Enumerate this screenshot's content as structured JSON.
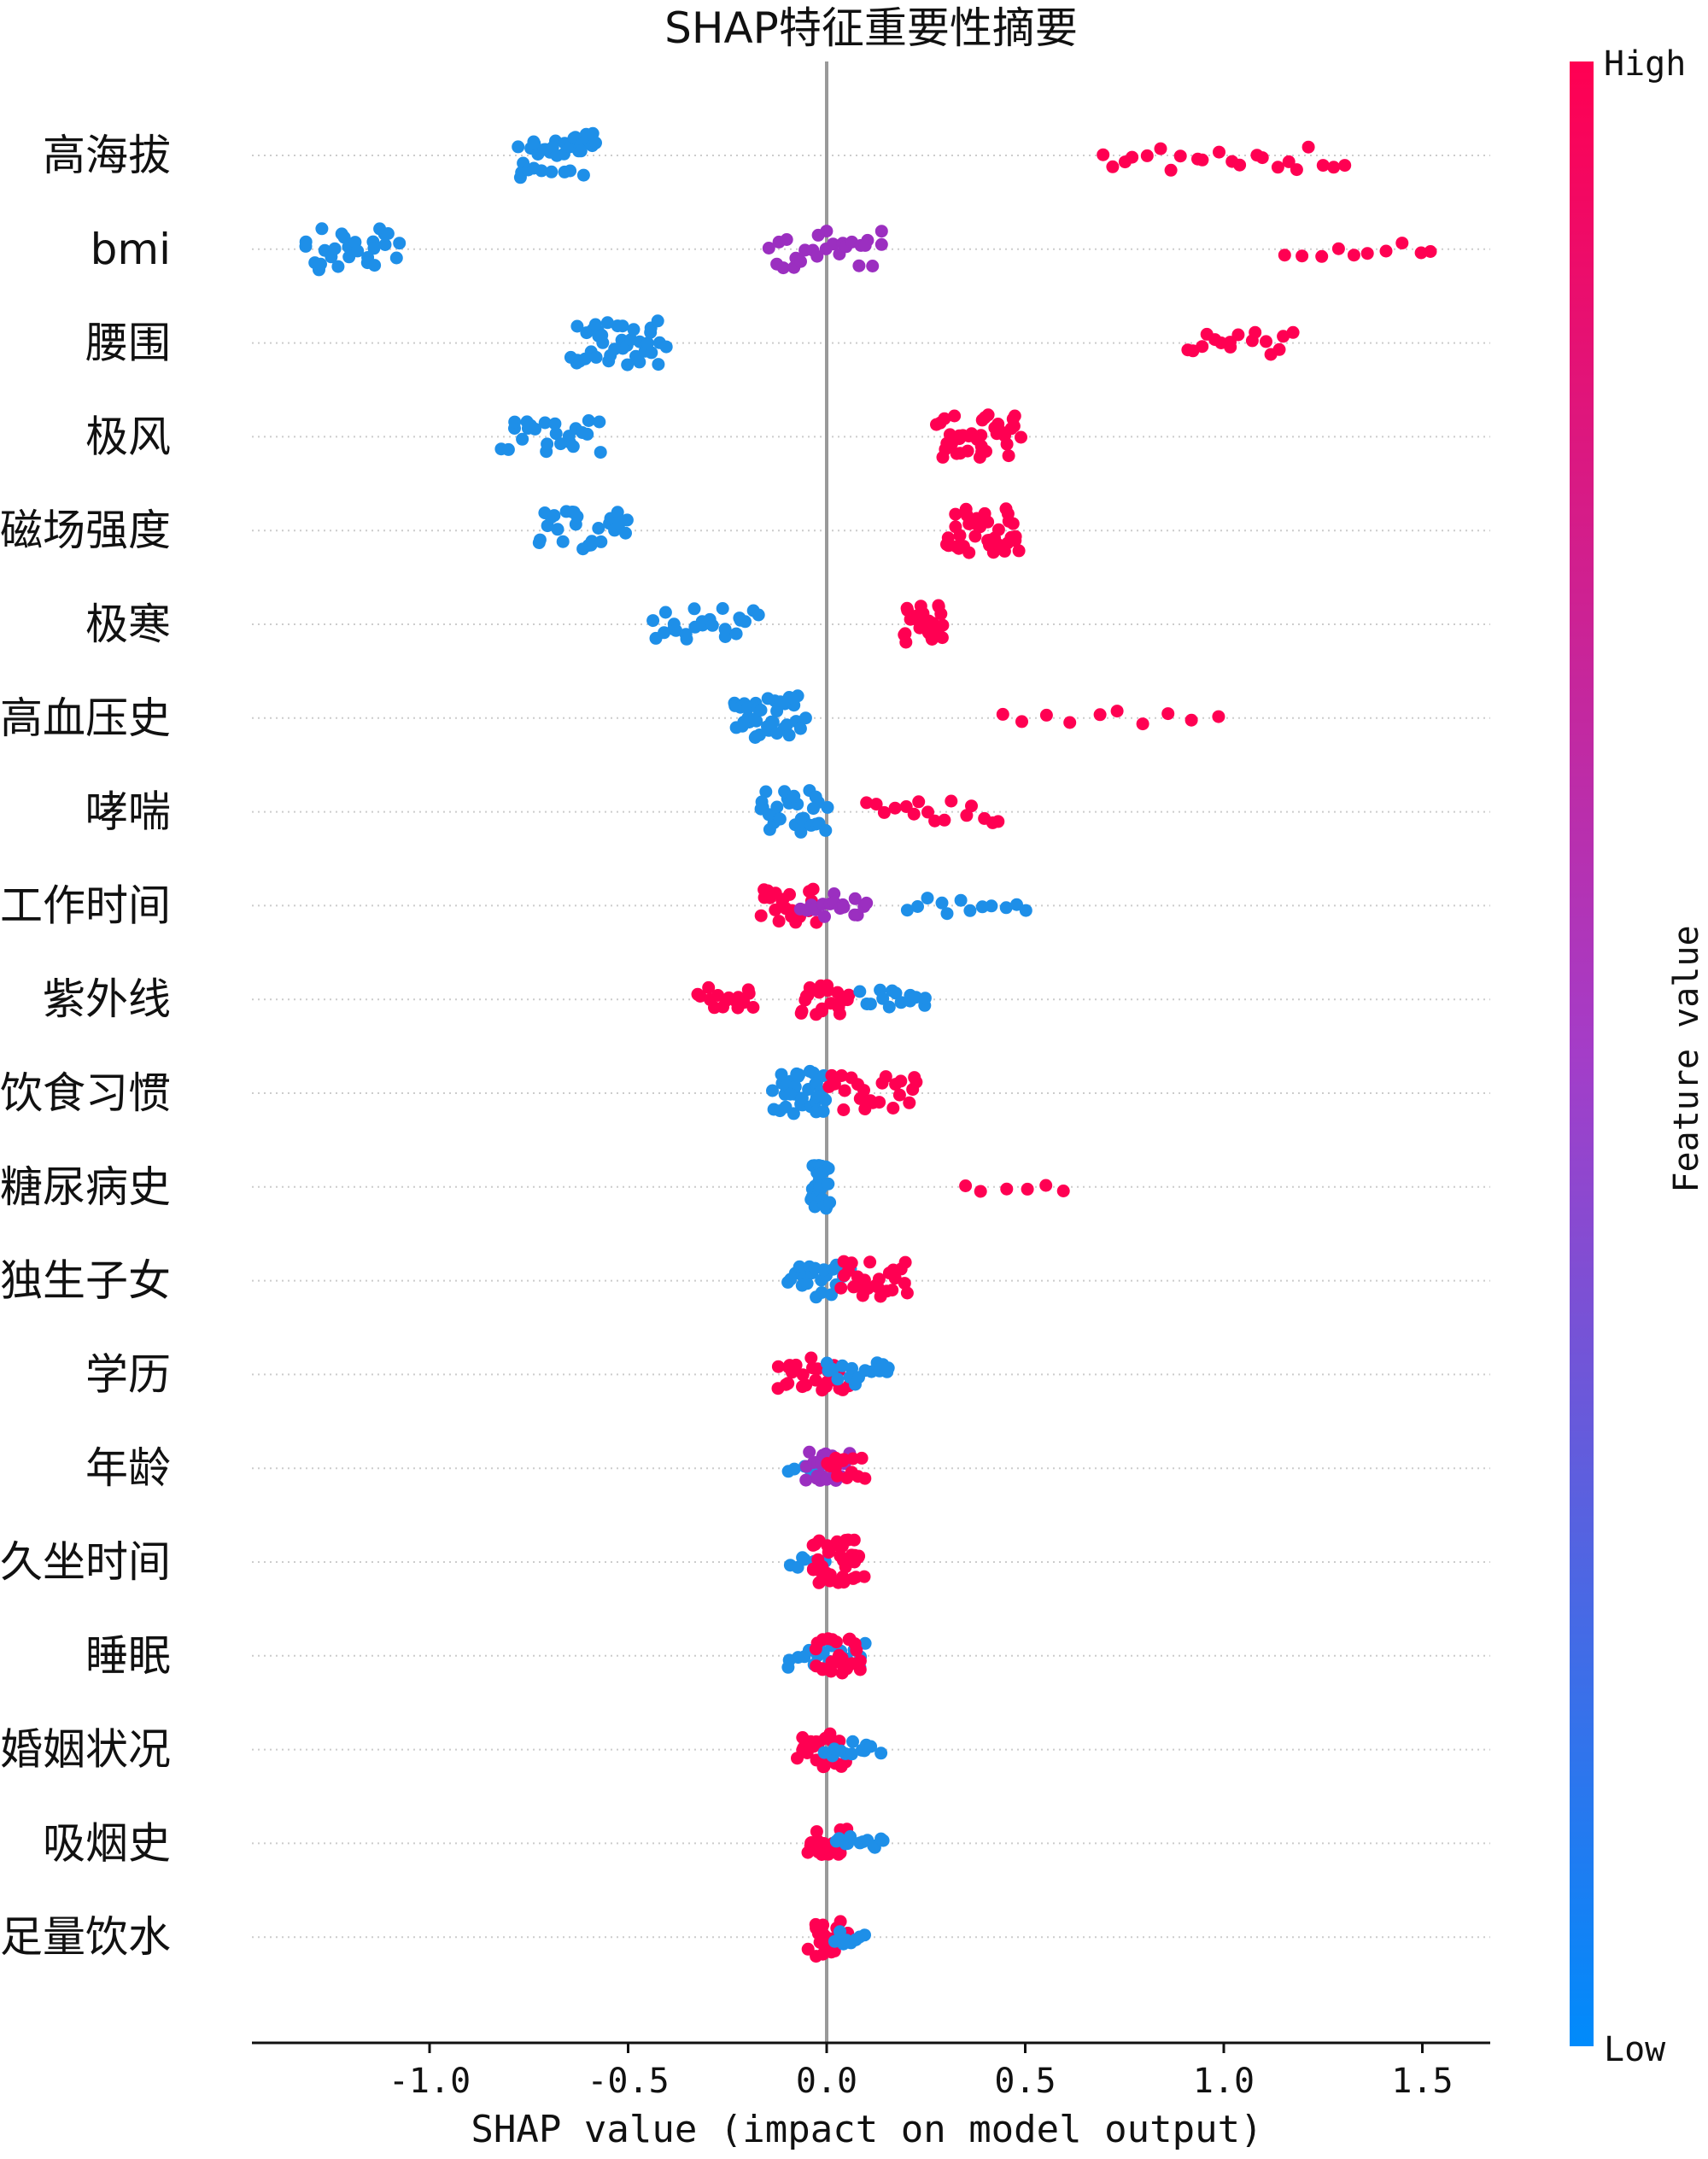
{
  "chart_data": {
    "type": "scatter",
    "subtype": "shap-beeswarm",
    "title": "SHAP特征重要性摘要",
    "xlabel": "SHAP value (impact on model output)",
    "xlim": [
      -1.45,
      1.67
    ],
    "xticks": [
      -1.0,
      -0.5,
      0.0,
      0.5,
      1.0,
      1.5
    ],
    "xtick_labels": [
      "-1.0",
      "-0.5",
      "0.0",
      "0.5",
      "1.0",
      "1.5"
    ],
    "colorbar": {
      "label": "Feature value",
      "high_label": "High",
      "low_label": "Low",
      "high_color": "#ff0052",
      "mid_color": "#c41fb3",
      "low_color": "#008bfb"
    },
    "colors": {
      "high": "#ff0052",
      "mid": "#9b2fc0",
      "low": "#1e8fe8",
      "zero_line": "#999999",
      "grid": "#cccccc"
    },
    "features": [
      {
        "name": "高海拔",
        "groups": [
          {
            "c": "low",
            "min": -0.78,
            "max": -0.58,
            "n": 34
          },
          {
            "c": "high",
            "min": 0.69,
            "max": 1.31,
            "n": 22
          }
        ]
      },
      {
        "name": "bmi",
        "groups": [
          {
            "c": "low",
            "min": -1.31,
            "max": -1.08,
            "n": 28
          },
          {
            "c": "mid",
            "min": -0.14,
            "max": 0.14,
            "n": 26
          },
          {
            "c": "high",
            "min": 1.16,
            "max": 1.53,
            "n": 10
          }
        ]
      },
      {
        "name": "腰围",
        "groups": [
          {
            "c": "low",
            "min": -0.64,
            "max": -0.41,
            "n": 40
          },
          {
            "c": "high",
            "min": 0.9,
            "max": 1.17,
            "n": 16
          }
        ]
      },
      {
        "name": "极风",
        "groups": [
          {
            "c": "low",
            "min": -0.81,
            "max": -0.57,
            "n": 24
          },
          {
            "c": "high",
            "min": 0.28,
            "max": 0.48,
            "n": 40
          }
        ]
      },
      {
        "name": "磁场强度",
        "groups": [
          {
            "c": "low",
            "min": -0.73,
            "max": -0.5,
            "n": 26
          },
          {
            "c": "high",
            "min": 0.3,
            "max": 0.48,
            "n": 40
          }
        ]
      },
      {
        "name": "极寒",
        "groups": [
          {
            "c": "low",
            "min": -0.44,
            "max": -0.18,
            "n": 24
          },
          {
            "c": "high",
            "min": 0.19,
            "max": 0.3,
            "n": 26
          }
        ]
      },
      {
        "name": "高血压史",
        "groups": [
          {
            "c": "low",
            "min": -0.23,
            "max": -0.06,
            "n": 40
          },
          {
            "c": "high",
            "min": 0.44,
            "max": 0.98,
            "n": 10
          }
        ]
      },
      {
        "name": "哮喘",
        "groups": [
          {
            "c": "low",
            "min": -0.17,
            "max": 0.0,
            "n": 30
          },
          {
            "c": "high",
            "min": 0.11,
            "max": 0.43,
            "n": 16
          }
        ]
      },
      {
        "name": "工作时间",
        "groups": [
          {
            "c": "high",
            "min": -0.17,
            "max": -0.02,
            "n": 24
          },
          {
            "c": "mid",
            "min": -0.06,
            "max": 0.1,
            "n": 18
          },
          {
            "c": "low",
            "min": 0.2,
            "max": 0.5,
            "n": 12
          }
        ]
      },
      {
        "name": "紫外线",
        "groups": [
          {
            "c": "high",
            "min": -0.32,
            "max": -0.18,
            "n": 16
          },
          {
            "c": "high",
            "min": -0.06,
            "max": 0.05,
            "n": 22
          },
          {
            "c": "low",
            "min": 0.09,
            "max": 0.25,
            "n": 14
          }
        ]
      },
      {
        "name": "饮食习惯",
        "groups": [
          {
            "c": "low",
            "min": -0.13,
            "max": 0.0,
            "n": 36
          },
          {
            "c": "high",
            "min": 0.0,
            "max": 0.23,
            "n": 24
          }
        ]
      },
      {
        "name": "糖尿病史",
        "groups": [
          {
            "c": "low",
            "min": -0.03,
            "max": 0.0,
            "n": 34
          },
          {
            "c": "high",
            "min": 0.34,
            "max": 0.6,
            "n": 6
          }
        ]
      },
      {
        "name": "独生子女",
        "groups": [
          {
            "c": "low",
            "min": -0.09,
            "max": 0.05,
            "n": 24
          },
          {
            "c": "high",
            "min": 0.03,
            "max": 0.2,
            "n": 26
          }
        ]
      },
      {
        "name": "学历",
        "groups": [
          {
            "c": "high",
            "min": -0.12,
            "max": 0.05,
            "n": 26
          },
          {
            "c": "low",
            "min": 0.0,
            "max": 0.16,
            "n": 16
          }
        ]
      },
      {
        "name": "年龄",
        "groups": [
          {
            "c": "low",
            "min": -0.09,
            "max": 0.0,
            "n": 8
          },
          {
            "c": "mid",
            "min": -0.05,
            "max": 0.05,
            "n": 22
          },
          {
            "c": "high",
            "min": 0.0,
            "max": 0.09,
            "n": 14
          }
        ]
      },
      {
        "name": "久坐时间",
        "groups": [
          {
            "c": "low",
            "min": -0.09,
            "max": 0.0,
            "n": 8
          },
          {
            "c": "high",
            "min": -0.04,
            "max": 0.09,
            "n": 38
          }
        ]
      },
      {
        "name": "睡眠",
        "groups": [
          {
            "c": "low",
            "min": -0.1,
            "max": 0.1,
            "n": 18
          },
          {
            "c": "high",
            "min": -0.03,
            "max": 0.09,
            "n": 24
          }
        ]
      },
      {
        "name": "婚姻状况",
        "groups": [
          {
            "c": "high",
            "min": -0.07,
            "max": 0.04,
            "n": 26
          },
          {
            "c": "low",
            "min": 0.0,
            "max": 0.13,
            "n": 12
          }
        ]
      },
      {
        "name": "吸烟史",
        "groups": [
          {
            "c": "high",
            "min": -0.05,
            "max": 0.05,
            "n": 20
          },
          {
            "c": "low",
            "min": 0.02,
            "max": 0.15,
            "n": 12
          }
        ]
      },
      {
        "name": "足量饮水",
        "groups": [
          {
            "c": "high",
            "min": -0.04,
            "max": 0.05,
            "n": 26
          },
          {
            "c": "low",
            "min": 0.02,
            "max": 0.09,
            "n": 10
          }
        ]
      }
    ]
  }
}
